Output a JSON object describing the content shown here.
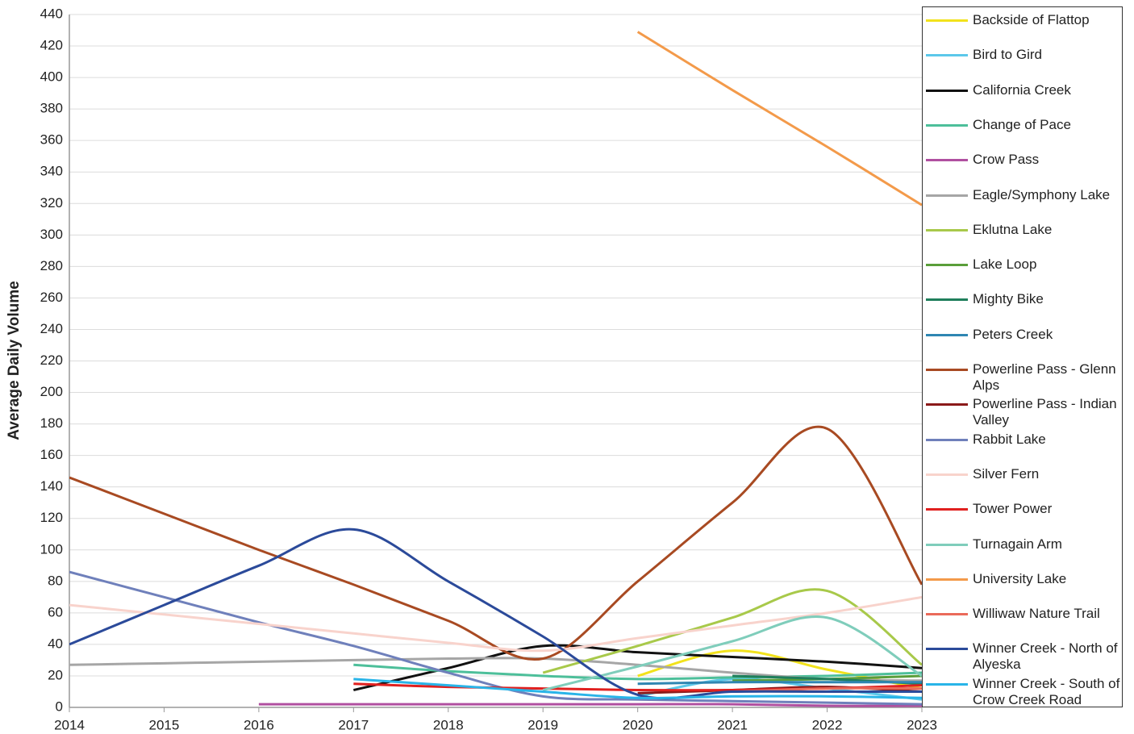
{
  "chart_data": {
    "type": "line",
    "ylabel": "Average Daily Volume",
    "x": [
      2014,
      2015,
      2016,
      2017,
      2018,
      2019,
      2020,
      2021,
      2022,
      2023
    ],
    "xlim": [
      2014,
      2023
    ],
    "xticks": [
      2014,
      2015,
      2016,
      2017,
      2018,
      2019,
      2020,
      2021,
      2022,
      2023
    ],
    "ylim": [
      0,
      440
    ],
    "yticks": [
      0,
      20,
      40,
      60,
      80,
      100,
      120,
      140,
      160,
      180,
      200,
      220,
      240,
      260,
      280,
      300,
      320,
      340,
      360,
      380,
      400,
      420,
      440
    ],
    "grid": true,
    "series": [
      {
        "name": "Backside of Flattop",
        "color": "#f2e21c",
        "values": [
          null,
          null,
          null,
          null,
          null,
          null,
          20,
          36,
          24,
          12
        ]
      },
      {
        "name": "Bird to Gird",
        "color": "#5cc8ea",
        "values": [
          null,
          null,
          null,
          null,
          null,
          null,
          7,
          18,
          12,
          5
        ]
      },
      {
        "name": "California Creek",
        "color": "#111111",
        "values": [
          null,
          null,
          null,
          11,
          25,
          39,
          35,
          32,
          29,
          25
        ]
      },
      {
        "name": "Change of Pace",
        "color": "#4dbf9a",
        "values": [
          null,
          null,
          null,
          27,
          23,
          20,
          18,
          19,
          20,
          22
        ]
      },
      {
        "name": "Crow Pass",
        "color": "#b04fa0",
        "values": [
          null,
          null,
          2,
          2,
          2,
          2,
          2,
          2,
          1,
          1
        ]
      },
      {
        "name": "Eagle/Symphony Lake",
        "color": "#a6a6a6",
        "values": [
          27,
          28,
          29,
          30,
          31,
          31,
          27,
          22,
          18,
          17
        ]
      },
      {
        "name": "Eklutna Lake",
        "color": "#a8c94a",
        "values": [
          null,
          null,
          null,
          null,
          null,
          22,
          39,
          57,
          74,
          27
        ]
      },
      {
        "name": "Lake Loop",
        "color": "#5a9e3a",
        "values": [
          null,
          null,
          null,
          null,
          null,
          null,
          null,
          17,
          18,
          20
        ]
      },
      {
        "name": "Mighty Bike",
        "color": "#1f7f5c",
        "values": [
          null,
          null,
          null,
          null,
          null,
          null,
          null,
          20,
          18,
          15
        ]
      },
      {
        "name": "Peters Creek",
        "color": "#2f86b2",
        "values": [
          null,
          null,
          null,
          null,
          null,
          null,
          15,
          16,
          16,
          16
        ]
      },
      {
        "name": "Powerline Pass - Glenn Alps",
        "color": "#a84a22",
        "values": [
          146,
          123,
          100,
          78,
          55,
          31,
          80,
          130,
          177,
          78
        ]
      },
      {
        "name": "Powerline Pass - Indian Valley",
        "color": "#8b1a1a",
        "values": [
          null,
          null,
          null,
          null,
          null,
          null,
          9,
          11,
          13,
          10
        ]
      },
      {
        "name": "Rabbit Lake",
        "color": "#6f80bb",
        "values": [
          86,
          70,
          54,
          39,
          22,
          7,
          5,
          4,
          3,
          2
        ]
      },
      {
        "name": "Silver Fern",
        "color": "#f8d3cc",
        "values": [
          65,
          59,
          53,
          47,
          41,
          36,
          44,
          52,
          60,
          70
        ]
      },
      {
        "name": "Tower Power",
        "color": "#e0201f",
        "values": [
          null,
          null,
          null,
          15,
          13,
          12,
          11,
          11,
          12,
          14
        ]
      },
      {
        "name": "Turnagain Arm",
        "color": "#7fcdbb",
        "values": [
          null,
          null,
          null,
          null,
          null,
          11,
          26,
          42,
          57,
          20
        ]
      },
      {
        "name": "University Lake",
        "color": "#f39a4a",
        "values": [
          null,
          null,
          null,
          null,
          null,
          null,
          429,
          392,
          356,
          319
        ]
      },
      {
        "name": "Williwaw Nature Trail",
        "color": "#ea6a5a",
        "values": [
          null,
          null,
          null,
          null,
          null,
          null,
          null,
          10,
          12,
          12
        ]
      },
      {
        "name": "Winner Creek - North of Alyeska",
        "color": "#2b4a9a",
        "values": [
          40,
          65,
          90,
          113,
          80,
          45,
          8,
          10,
          10,
          10
        ]
      },
      {
        "name": "Winner Creek - South of Crow Creek Road",
        "color": "#29b4e8",
        "values": [
          null,
          null,
          null,
          18,
          14,
          10,
          6,
          7,
          7,
          6
        ]
      }
    ]
  }
}
